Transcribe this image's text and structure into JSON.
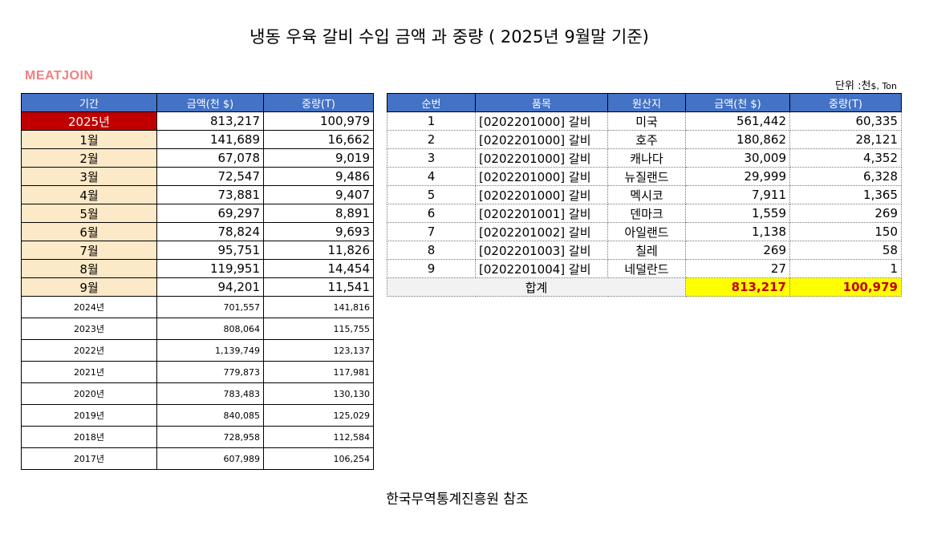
{
  "title": "냉동 우육 갈비  수입 금액 과 중량 ( 2025년 9월말 기준)",
  "logo": "MEATJOIN",
  "unit_label": "단위 :천",
  "unit_suffix": "$, Ton",
  "source": "한국무역통계진흥원 참조",
  "left_table": {
    "headers": [
      "기간",
      "금액(천 $)",
      "중량(T)"
    ],
    "current": {
      "period": "2025년",
      "amount": "813,217",
      "weight": "100,979"
    },
    "months": [
      {
        "period": "1월",
        "amount": "141,689",
        "weight": "16,662"
      },
      {
        "period": "2월",
        "amount": "67,078",
        "weight": "9,019"
      },
      {
        "period": "3월",
        "amount": "72,547",
        "weight": "9,486"
      },
      {
        "period": "4월",
        "amount": "73,881",
        "weight": "9,407"
      },
      {
        "period": "5월",
        "amount": "69,297",
        "weight": "8,891"
      },
      {
        "period": "6월",
        "amount": "78,824",
        "weight": "9,693"
      },
      {
        "period": "7월",
        "amount": "95,751",
        "weight": "11,826"
      },
      {
        "period": "8월",
        "amount": "119,951",
        "weight": "14,454"
      },
      {
        "period": "9월",
        "amount": "94,201",
        "weight": "11,541"
      }
    ],
    "years": [
      {
        "period": "2024년",
        "amount": "701,557",
        "weight": "141,816"
      },
      {
        "period": "2023년",
        "amount": "808,064",
        "weight": "115,755"
      },
      {
        "period": "2022년",
        "amount": "1,139,749",
        "weight": "123,137"
      },
      {
        "period": "2021년",
        "amount": "779,873",
        "weight": "117,981"
      },
      {
        "period": "2020년",
        "amount": "783,483",
        "weight": "130,130"
      },
      {
        "period": "2019년",
        "amount": "840,085",
        "weight": "125,029"
      },
      {
        "period": "2018년",
        "amount": "728,958",
        "weight": "112,584"
      },
      {
        "period": "2017년",
        "amount": "607,989",
        "weight": "106,254"
      }
    ]
  },
  "right_table": {
    "headers": [
      "순번",
      "품목",
      "원산지",
      "금액(천 $)",
      "중량(T)"
    ],
    "rows": [
      {
        "no": "1",
        "item": "[0202201000] 갈비",
        "origin": "미국",
        "amount": "561,442",
        "weight": "60,335"
      },
      {
        "no": "2",
        "item": "[0202201000] 갈비",
        "origin": "호주",
        "amount": "180,862",
        "weight": "28,121"
      },
      {
        "no": "3",
        "item": "[0202201000] 갈비",
        "origin": "캐나다",
        "amount": "30,009",
        "weight": "4,352"
      },
      {
        "no": "4",
        "item": "[0202201000] 갈비",
        "origin": "뉴질랜드",
        "amount": "29,999",
        "weight": "6,328"
      },
      {
        "no": "5",
        "item": "[0202201000] 갈비",
        "origin": "멕시코",
        "amount": "7,911",
        "weight": "1,365"
      },
      {
        "no": "6",
        "item": "[0202201001] 갈비",
        "origin": "덴마크",
        "amount": "1,559",
        "weight": "269"
      },
      {
        "no": "7",
        "item": "[0202201002] 갈비",
        "origin": "아일랜드",
        "amount": "1,138",
        "weight": "150"
      },
      {
        "no": "8",
        "item": "[0202201003] 갈비",
        "origin": "칠레",
        "amount": "269",
        "weight": "58"
      },
      {
        "no": "9",
        "item": "[0202201004] 갈비",
        "origin": "네덜란드",
        "amount": "27",
        "weight": "1"
      }
    ],
    "total": {
      "label": "합계",
      "amount": "813,217",
      "weight": "100,979"
    }
  },
  "colors": {
    "header_bg": "#4472c4",
    "current_bg": "#c00000",
    "month_bg": "#fce9c7",
    "total_highlight": "#ffff00",
    "total_text": "#c00000",
    "logo": "#f08080"
  }
}
